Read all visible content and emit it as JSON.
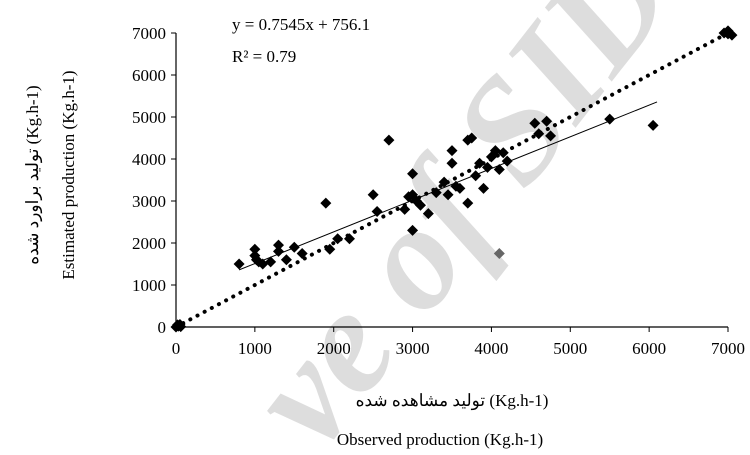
{
  "chart_data": {
    "type": "scatter",
    "title": "",
    "xlabel_fa": "تولید مشاهده شده (Kg.h-1)",
    "xlabel_en": "Observed production (Kg.h-1)",
    "ylabel_fa": "تولید براورد شده (Kg.h-1)",
    "ylabel_en": "Estimated production (Kg.h-1)",
    "xlim": [
      0,
      7000
    ],
    "ylim": [
      0,
      7000
    ],
    "x_ticks": [
      "0",
      "1000",
      "2000",
      "3000",
      "4000",
      "5000",
      "6000",
      "7000"
    ],
    "y_ticks": [
      "0",
      "1000",
      "2000",
      "3000",
      "4000",
      "5000",
      "6000",
      "7000"
    ],
    "equation": "y = 0.7545x + 756.1",
    "r_squared": "R² = 0.79",
    "watermark": "ve of SID",
    "series": [
      {
        "marker": "diamond",
        "color": "#000000",
        "points": [
          [
            0,
            0
          ],
          [
            30,
            20
          ],
          [
            50,
            60
          ],
          [
            20,
            50
          ],
          [
            60,
            10
          ],
          [
            800,
            1500
          ],
          [
            1000,
            1850
          ],
          [
            1000,
            1700
          ],
          [
            1020,
            1600
          ],
          [
            1050,
            1550
          ],
          [
            1100,
            1500
          ],
          [
            1200,
            1550
          ],
          [
            1300,
            1950
          ],
          [
            1300,
            1800
          ],
          [
            1400,
            1600
          ],
          [
            1500,
            1900
          ],
          [
            1600,
            1750
          ],
          [
            1900,
            2950
          ],
          [
            1950,
            1850
          ],
          [
            2050,
            2100
          ],
          [
            2200,
            2100
          ],
          [
            2500,
            3150
          ],
          [
            2550,
            2750
          ],
          [
            2700,
            4450
          ],
          [
            2900,
            2800
          ],
          [
            2950,
            3100
          ],
          [
            3000,
            3650
          ],
          [
            3000,
            3150
          ],
          [
            3000,
            2300
          ],
          [
            3050,
            3000
          ],
          [
            3100,
            2900
          ],
          [
            3200,
            2700
          ],
          [
            3300,
            3200
          ],
          [
            3400,
            3450
          ],
          [
            3450,
            3150
          ],
          [
            3500,
            4200
          ],
          [
            3500,
            3900
          ],
          [
            3550,
            3350
          ],
          [
            3600,
            3300
          ],
          [
            3700,
            4450
          ],
          [
            3750,
            4500
          ],
          [
            3700,
            2950
          ],
          [
            3800,
            3600
          ],
          [
            3850,
            3900
          ],
          [
            3900,
            3300
          ],
          [
            3950,
            3800
          ],
          [
            4000,
            4050
          ],
          [
            4050,
            4200
          ],
          [
            4100,
            3750
          ],
          [
            4150,
            4150
          ],
          [
            4200,
            3950
          ],
          [
            4550,
            4850
          ],
          [
            4600,
            4600
          ],
          [
            4700,
            4900
          ],
          [
            4750,
            4550
          ],
          [
            5500,
            4950
          ],
          [
            6050,
            4800
          ],
          [
            6950,
            7000
          ],
          [
            7000,
            7050
          ],
          [
            7050,
            6950
          ],
          [
            7000,
            6980
          ]
        ]
      },
      {
        "marker": "diamond",
        "color": "#666666",
        "points": [
          [
            4100,
            1750
          ]
        ]
      }
    ],
    "regression_line": {
      "style": "solid",
      "x": [
        800,
        6100
      ]
    },
    "reference_line": {
      "style": "dotted",
      "label": "1:1",
      "x": [
        0,
        7000
      ]
    },
    "grid": false,
    "legend": "none"
  }
}
